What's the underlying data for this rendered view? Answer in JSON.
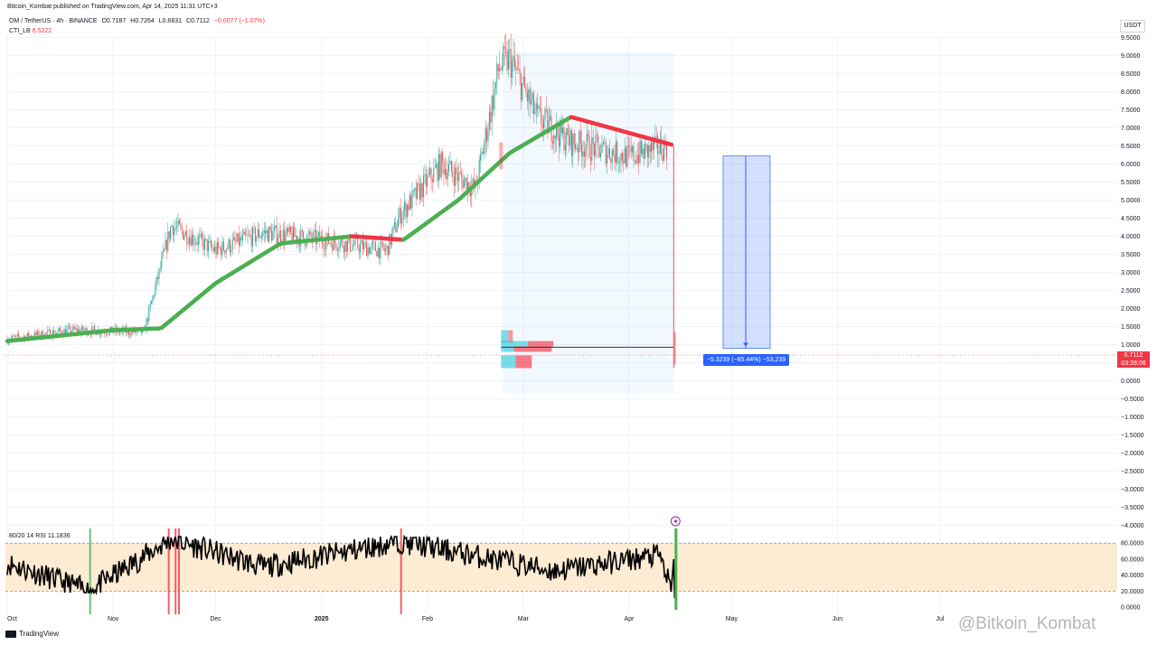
{
  "header": {
    "publisher": "Bitcoin_Kombat published on TradingView.com, Apr 14, 2025 11:31 UTC+3"
  },
  "legend": {
    "symbol": "OM / TetherUS · 4h · BINANCE",
    "open": "O0.7187",
    "high": "H0.7264",
    "low": "L0.6831",
    "close": "C0.7112",
    "change": "−0.0077 (−1.07%)",
    "indicator_name": "CTI_LB",
    "indicator_value": "6.5222"
  },
  "price_axis": {
    "currency": "USDT",
    "ticks": [
      "9.5000",
      "9.0000",
      "8.5000",
      "8.0000",
      "7.5000",
      "7.0000",
      "6.5000",
      "6.0000",
      "5.5000",
      "5.0000",
      "4.5000",
      "4.0000",
      "3.5000",
      "3.0000",
      "2.5000",
      "2.0000",
      "1.5000",
      "1.0000",
      "0.5000",
      "0.0000",
      "−0.5000",
      "−1.0000",
      "−1.5000",
      "−2.0000",
      "−2.5000",
      "−3.0000",
      "−3.5000",
      "−4.0000"
    ],
    "last_price": "0.7112",
    "countdown": "03:28:06"
  },
  "rsi_axis": {
    "ticks": [
      "80.0000",
      "60.0000",
      "40.0000",
      "20.0000",
      "0.0000"
    ]
  },
  "time_axis": {
    "labels": [
      "Oct",
      "Nov",
      "Dec",
      "2025",
      "Feb",
      "Mar",
      "Apr",
      "May",
      "Jun",
      "Jul"
    ]
  },
  "measure": {
    "label": "−5.3239 (−85.44%) −53,239"
  },
  "rsi": {
    "legend": "80/20 14 RSI",
    "value": "11.1836"
  },
  "footer": {
    "brand": "TradingView"
  },
  "watermark": "@Bitkoin_Kombat",
  "colors": {
    "up": "#26a69a",
    "down": "#ef5350",
    "trend_up": "#4caf50",
    "trend_down": "#f23645",
    "measure": "#2962ff",
    "rsi_band": "#fdebd3"
  },
  "chart_data": [
    {
      "type": "line",
      "series": [
        {
          "name": "OM / TetherUS",
          "x": [
            "2024-10-01",
            "2024-10-20",
            "2024-11-10",
            "2024-11-18",
            "2024-12-01",
            "2024-12-15",
            "2025-01-01",
            "2025-01-20",
            "2025-01-24",
            "2025-02-05",
            "2025-02-15",
            "2025-02-22",
            "2025-02-25",
            "2025-03-05",
            "2025-03-15",
            "2025-04-01",
            "2025-04-12",
            "2025-04-13",
            "2025-04-14"
          ],
          "values": [
            1.15,
            1.4,
            1.35,
            4.3,
            3.6,
            4.1,
            3.9,
            3.6,
            4.6,
            6.0,
            5.3,
            8.7,
            8.9,
            7.3,
            6.6,
            6.2,
            6.5,
            0.6,
            0.71
          ]
        },
        {
          "name": "CTI_LB",
          "x": [
            "2024-10-01",
            "2024-11-01",
            "2024-11-15",
            "2024-12-01",
            "2024-12-20",
            "2025-01-10",
            "2025-01-25",
            "2025-02-10",
            "2025-02-25",
            "2025-03-15",
            "2025-04-14"
          ],
          "values": [
            1.1,
            1.4,
            1.45,
            2.7,
            3.8,
            4.0,
            3.9,
            5.0,
            6.3,
            7.3,
            6.52
          ]
        }
      ],
      "ylim": [
        -4.0,
        9.5
      ]
    },
    {
      "type": "line",
      "series": [
        {
          "name": "RSI",
          "x": [
            "2024-10-01",
            "2024-10-25",
            "2024-11-18",
            "2024-12-15",
            "2025-01-24",
            "2025-02-20",
            "2025-03-10",
            "2025-04-10",
            "2025-04-14"
          ],
          "values": [
            55,
            20,
            85,
            50,
            82,
            60,
            45,
            65,
            11.18
          ]
        }
      ],
      "ylim": [
        0,
        80
      ]
    }
  ]
}
